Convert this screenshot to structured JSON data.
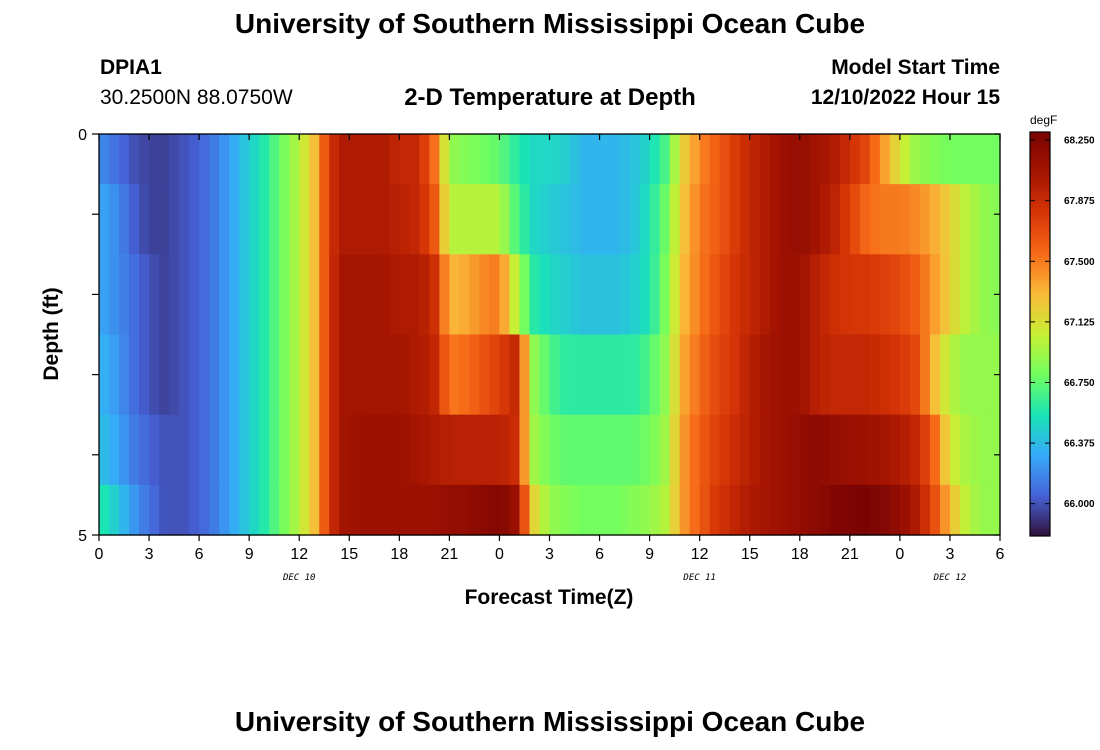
{
  "header": {
    "title": "University of Southern Mississippi Ocean Cube",
    "station": "DPIA1",
    "coords": "30.2500N  88.0750W",
    "subtitle": "2-D Temperature at Depth",
    "start_label": "Model Start Time",
    "start_value": "12/10/2022 Hour 15"
  },
  "footer": {
    "title": "University of Southern Mississippi Ocean Cube"
  },
  "chart_data": {
    "type": "heatmap",
    "title": "2-D Temperature at Depth",
    "xlabel": "Forecast Time(Z)",
    "ylabel": "Depth (ft)",
    "x_tick_labels": [
      "0",
      "3",
      "6",
      "9",
      "12",
      "15",
      "18",
      "21",
      "0",
      "3",
      "6",
      "9",
      "12",
      "15",
      "18",
      "21",
      "0",
      "3",
      "6"
    ],
    "y_tick_labels": [
      "0",
      "5"
    ],
    "date_labels": [
      {
        "label": "DEC 10",
        "hour": 12
      },
      {
        "label": "DEC 11",
        "hour": 36
      },
      {
        "label": "DEC 12",
        "hour": 51
      }
    ],
    "x_range_hours": [
      0,
      54
    ],
    "y_range_ft": [
      0,
      5
    ],
    "depth_bins_ft": [
      0.25,
      1.0,
      2.0,
      3.0,
      4.0,
      4.75
    ],
    "time_step_hours": 0.6,
    "colorbar": {
      "unit": "degF",
      "ticks": [
        "68.250",
        "67.875",
        "67.500",
        "67.125",
        "66.750",
        "66.375",
        "66.000"
      ],
      "range": [
        65.8,
        68.3
      ]
    },
    "anchor_hours": [
      0,
      1,
      2,
      3,
      4,
      5,
      6,
      7,
      8,
      9,
      10,
      11,
      12,
      13,
      13.8,
      14.5,
      16,
      17,
      18,
      19,
      20,
      21,
      22,
      23,
      24,
      25,
      26,
      27,
      28,
      29,
      30,
      31,
      32,
      33,
      34,
      35,
      36,
      37,
      38,
      39,
      40,
      41,
      42,
      43,
      44,
      45,
      46,
      47,
      48,
      49,
      50,
      51,
      52,
      53,
      54
    ],
    "series": [
      {
        "depth_ft": 0.25,
        "values": [
          66.2,
          66.1,
          66.0,
          65.95,
          65.95,
          66.0,
          66.05,
          66.15,
          66.3,
          66.45,
          66.6,
          66.8,
          67.0,
          67.3,
          67.8,
          68.0,
          68.0,
          68.0,
          67.9,
          67.9,
          67.6,
          66.9,
          66.85,
          66.8,
          66.75,
          66.6,
          66.5,
          66.5,
          66.45,
          66.35,
          66.35,
          66.35,
          66.4,
          66.5,
          66.7,
          67.2,
          67.45,
          67.6,
          67.75,
          67.9,
          68.0,
          68.1,
          68.15,
          68.05,
          68.0,
          67.85,
          67.7,
          67.4,
          67.1,
          66.9,
          66.85,
          66.8,
          66.8,
          66.8,
          66.8
        ]
      },
      {
        "depth_ft": 1.0,
        "values": [
          66.3,
          66.2,
          66.05,
          65.95,
          65.95,
          66.0,
          66.05,
          66.15,
          66.3,
          66.45,
          66.6,
          66.8,
          67.0,
          67.3,
          67.8,
          68.0,
          68.0,
          68.0,
          67.95,
          67.9,
          67.7,
          67.0,
          67.0,
          67.0,
          67.0,
          66.7,
          66.5,
          66.45,
          66.4,
          66.35,
          66.35,
          66.35,
          66.4,
          66.55,
          66.8,
          67.25,
          67.5,
          67.6,
          67.75,
          67.9,
          68.0,
          68.1,
          68.15,
          68.05,
          67.95,
          67.75,
          67.55,
          67.5,
          67.5,
          67.45,
          67.35,
          67.2,
          67.0,
          66.9,
          66.85
        ]
      },
      {
        "depth_ft": 2.0,
        "values": [
          66.3,
          66.2,
          66.1,
          66.0,
          65.95,
          66.0,
          66.05,
          66.15,
          66.3,
          66.45,
          66.6,
          66.8,
          67.0,
          67.3,
          67.8,
          68.05,
          68.05,
          68.05,
          68.0,
          68.0,
          67.9,
          67.3,
          67.35,
          67.45,
          67.5,
          67.0,
          66.6,
          66.5,
          66.45,
          66.4,
          66.4,
          66.4,
          66.45,
          66.55,
          66.85,
          67.3,
          67.5,
          67.65,
          67.8,
          67.9,
          68.0,
          68.1,
          68.1,
          67.95,
          67.85,
          67.8,
          67.8,
          67.75,
          67.7,
          67.6,
          67.4,
          67.2,
          67.0,
          66.9,
          66.85
        ]
      },
      {
        "depth_ft": 3.0,
        "values": [
          66.35,
          66.25,
          66.1,
          66.0,
          65.95,
          66.0,
          66.05,
          66.15,
          66.3,
          66.45,
          66.6,
          66.8,
          67.0,
          67.3,
          67.8,
          68.05,
          68.05,
          68.05,
          68.05,
          68.0,
          67.95,
          67.5,
          67.55,
          67.65,
          67.75,
          67.9,
          66.9,
          66.7,
          66.6,
          66.6,
          66.6,
          66.6,
          66.6,
          66.7,
          66.9,
          67.35,
          67.55,
          67.7,
          67.8,
          67.95,
          68.05,
          68.1,
          68.1,
          67.95,
          67.9,
          67.9,
          67.9,
          67.85,
          67.8,
          67.7,
          67.3,
          67.0,
          66.9,
          66.9,
          66.9
        ]
      },
      {
        "depth_ft": 4.0,
        "values": [
          66.4,
          66.3,
          66.15,
          66.05,
          66.0,
          66.0,
          66.05,
          66.15,
          66.3,
          66.45,
          66.6,
          66.8,
          67.0,
          67.3,
          67.8,
          68.05,
          68.1,
          68.1,
          68.1,
          68.05,
          68.0,
          67.95,
          67.95,
          67.95,
          67.95,
          67.85,
          66.95,
          66.8,
          66.75,
          66.75,
          66.75,
          66.75,
          66.75,
          66.8,
          66.95,
          67.4,
          67.6,
          67.75,
          67.85,
          67.95,
          68.05,
          68.1,
          68.15,
          68.2,
          68.15,
          68.1,
          68.1,
          68.05,
          68.0,
          67.9,
          67.6,
          67.1,
          66.95,
          66.9,
          66.9
        ]
      },
      {
        "depth_ft": 4.75,
        "values": [
          66.6,
          66.45,
          66.25,
          66.1,
          66.0,
          66.0,
          66.05,
          66.15,
          66.3,
          66.45,
          66.6,
          66.8,
          67.0,
          67.3,
          67.8,
          68.05,
          68.1,
          68.1,
          68.1,
          68.1,
          68.1,
          68.15,
          68.15,
          68.2,
          68.25,
          68.1,
          67.2,
          66.9,
          66.85,
          66.8,
          66.8,
          66.8,
          66.85,
          66.9,
          67.0,
          67.4,
          67.6,
          67.8,
          67.9,
          68.0,
          68.05,
          68.1,
          68.15,
          68.2,
          68.25,
          68.28,
          68.3,
          68.25,
          68.15,
          68.0,
          67.7,
          67.3,
          67.0,
          66.9,
          66.9
        ]
      }
    ]
  }
}
